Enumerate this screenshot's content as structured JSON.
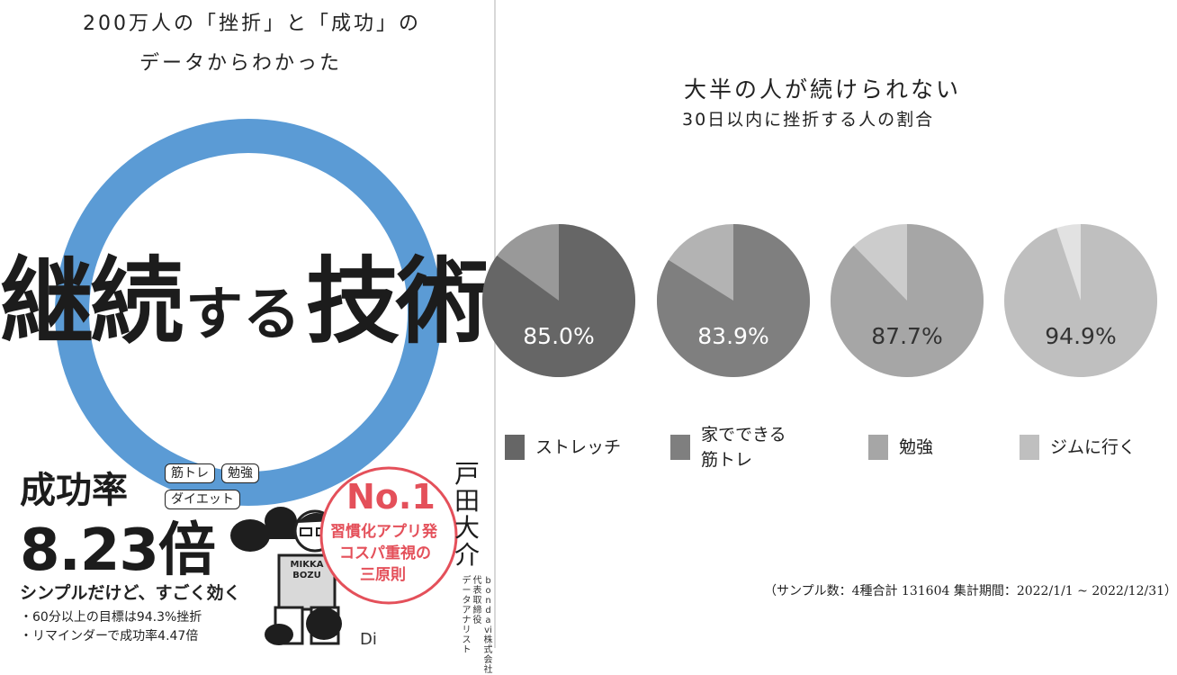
{
  "book_cover": {
    "subtitle_line1": "200万人の「挫折」と「成功」の",
    "subtitle_line2": "データからわかった",
    "title": {
      "part1": "継続",
      "part2": "する",
      "part3": "技術"
    },
    "success_label": "成功率",
    "success_value": "8.23倍",
    "tags": [
      "筋トレ",
      "勉強",
      "ダイエット"
    ],
    "tagline": "シンプルだけど、すごく効く",
    "bullets": [
      "・60分以上の目標は94.3%挫折",
      "・リマインダーで成功率4.47倍"
    ],
    "badge": {
      "no1": "No.1",
      "line1": "習慣化アプリ発",
      "line2": "コスパ重視の",
      "line3": "三原則"
    },
    "author": {
      "name": "戸田大介",
      "role_col1": "bondavi株式会社",
      "role_col2": "代表取締役",
      "role_col3": "データアナリスト"
    },
    "mascot_shirt": "MIKKA BOZU",
    "publisher_mark": "Di",
    "ring_color": "#5b9bd5"
  },
  "chart_data": {
    "type": "pie",
    "title": "大半の人が続けられない",
    "subtitle": "30日以内に挫折する人の割合",
    "value_format": "percent",
    "series": [
      {
        "name": "ストレッチ",
        "value": 85.0,
        "label": "85.0%",
        "color": "#666666",
        "rest_color": "#999999",
        "text_color": "#ffffff"
      },
      {
        "name": "家でできる筋トレ",
        "label_lines": [
          "家でできる",
          "筋トレ"
        ],
        "value": 83.9,
        "label": "83.9%",
        "color": "#7f7f7f",
        "rest_color": "#b3b3b3",
        "text_color": "#ffffff"
      },
      {
        "name": "勉強",
        "value": 87.7,
        "label": "87.7%",
        "color": "#a6a6a6",
        "rest_color": "#cccccc",
        "text_color": "#333333"
      },
      {
        "name": "ジムに行く",
        "value": 94.9,
        "label": "94.9%",
        "color": "#bfbfbf",
        "rest_color": "#e2e2e2",
        "text_color": "#333333"
      }
    ],
    "note": "（サンプル数：4種合計 131604 集計期間：2022/1/1 ~ 2022/12/31）"
  }
}
